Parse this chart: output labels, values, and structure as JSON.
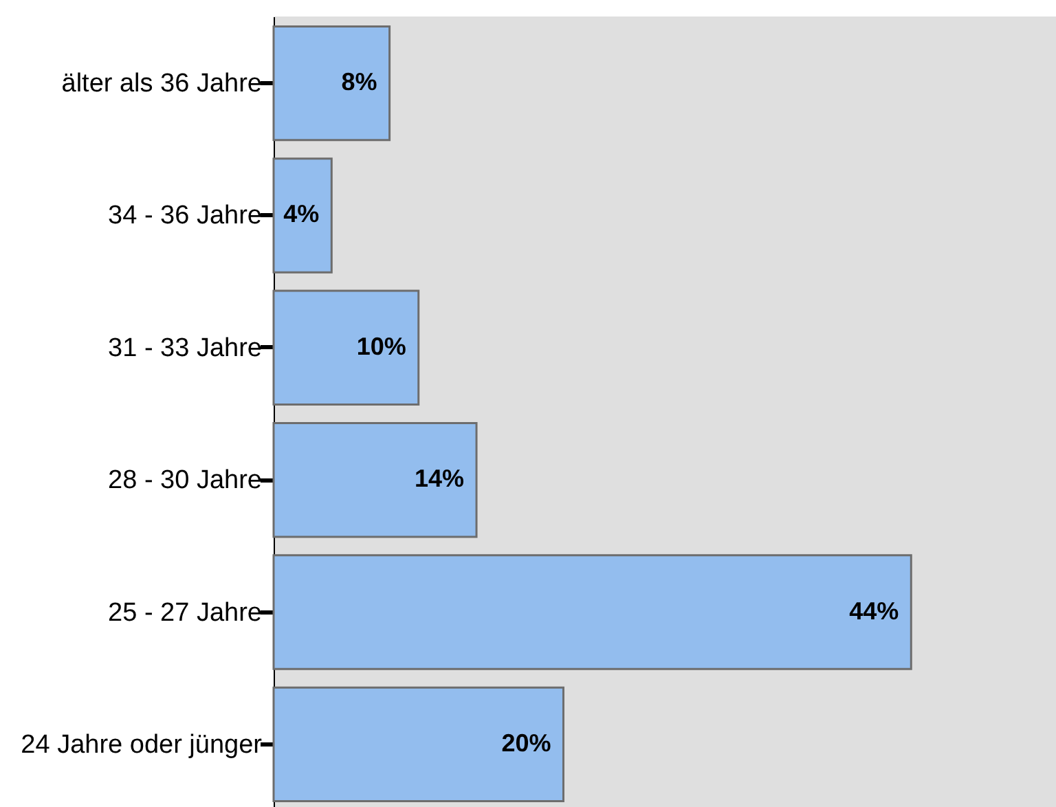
{
  "chart_data": {
    "type": "bar",
    "orientation": "horizontal",
    "categories": [
      "älter als 36 Jahre",
      "34 - 36 Jahre",
      "31 - 33 Jahre",
      "28 - 30 Jahre",
      "25 - 27 Jahre",
      "24 Jahre oder jünger"
    ],
    "values": [
      8,
      4,
      10,
      14,
      44,
      20
    ],
    "value_labels": [
      "8%",
      "4%",
      "10%",
      "14%",
      "44%",
      "20%"
    ],
    "color": "#93bdee",
    "xlim": [
      0,
      54
    ],
    "tick_labels": "y"
  }
}
